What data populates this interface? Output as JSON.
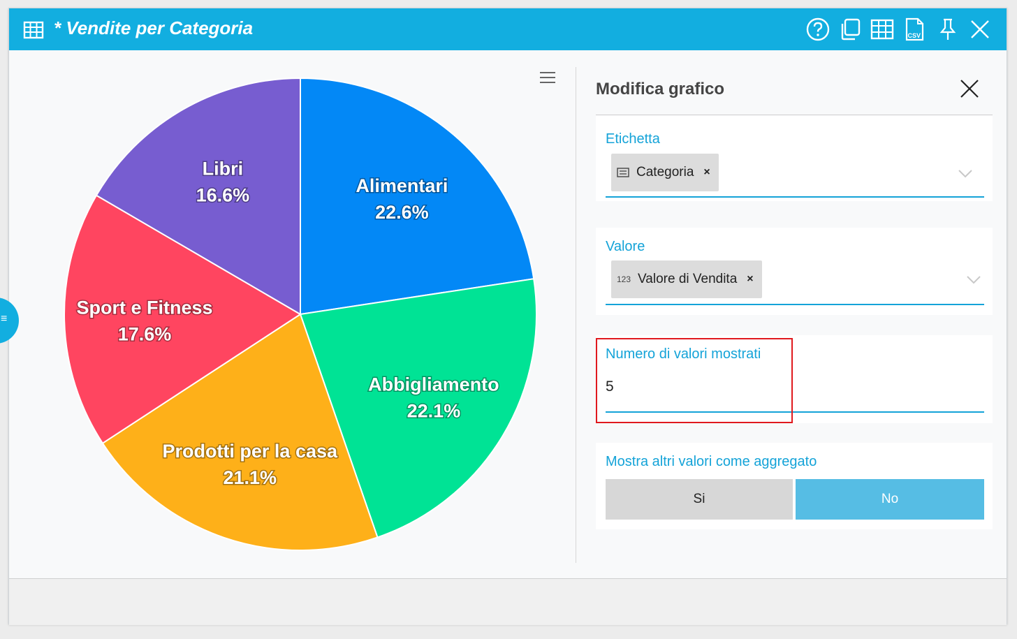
{
  "window": {
    "title": "* Vendite per Categoria",
    "accent": "#12aee0",
    "toolbar": {
      "help_icon": "help-circle-icon",
      "copy_icon": "copy-icon",
      "table_icon": "table-icon",
      "csv_label": "CSV",
      "pin_icon": "pin-icon",
      "close_icon": "close-icon"
    }
  },
  "chart_data": {
    "type": "pie",
    "categories": [
      "Alimentari",
      "Abbigliamento",
      "Prodotti per la casa",
      "Sport e Fitness",
      "Libri"
    ],
    "values": [
      22.6,
      22.1,
      21.1,
      17.6,
      16.6
    ],
    "labels": [
      "22.6%",
      "22.1%",
      "21.1%",
      "17.6%",
      "16.6%"
    ],
    "colors": [
      "#0388f6",
      "#00e395",
      "#feb019",
      "#ff4560",
      "#775dd0"
    ],
    "legend": "none",
    "start_angle_deg": 0,
    "direction": "clockwise"
  },
  "panel": {
    "title": "Modifica grafico",
    "etichetta": {
      "label": "Etichetta",
      "chip_icon": "list-icon",
      "chip_text": "Categoria"
    },
    "valore": {
      "label": "Valore",
      "chip_icon_text": "123",
      "chip_text": "Valore di Vendita"
    },
    "numero": {
      "label": "Numero di valori mostrati",
      "value": "5"
    },
    "aggregato": {
      "label": "Mostra altri valori come aggregato",
      "si": "Si",
      "no": "No",
      "selected": "No"
    }
  }
}
